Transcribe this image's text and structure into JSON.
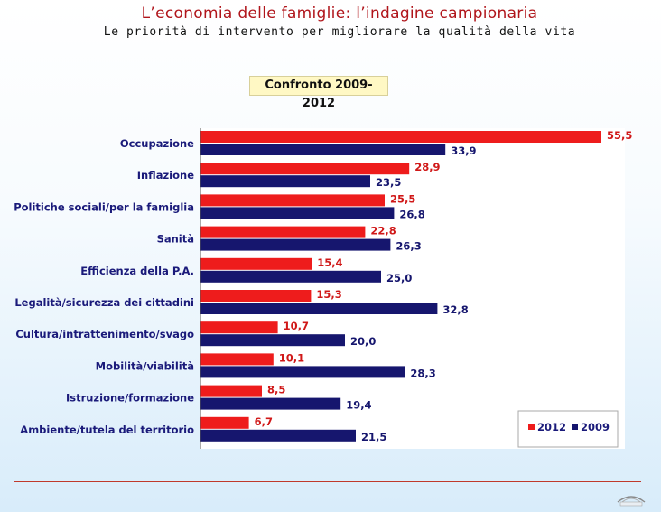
{
  "page": {
    "title": "L’economia delle famiglie: l’indagine campionaria",
    "subtitle": "Le priorità di intervento per migliorare la qualità della vita"
  },
  "chart_data": {
    "type": "bar",
    "orientation": "horizontal",
    "title": "Confronto 2009-2012",
    "categories": [
      "Occupazione",
      "Inflazione",
      "Politiche sociali/per la famiglia",
      "Sanità",
      "Efficienza della P.A.",
      "Legalità/sicurezza dei cittadini",
      "Cultura/intrattenimento/svago",
      "Mobilità/viabilità",
      "Istruzione/formazione",
      "Ambiente/tutela del territorio"
    ],
    "series": [
      {
        "name": "2012",
        "color": "#ee1c1c",
        "label_color": "#d01818",
        "values": [
          55.5,
          28.9,
          25.5,
          22.8,
          15.4,
          15.3,
          10.7,
          10.1,
          8.5,
          6.7
        ]
      },
      {
        "name": "2009",
        "color": "#16166e",
        "label_color": "#16166e",
        "values": [
          33.9,
          23.5,
          26.8,
          26.3,
          25.0,
          32.8,
          20.0,
          28.3,
          19.4,
          21.5
        ]
      }
    ],
    "legend_position": "bottom-right",
    "xlim": [
      0,
      56
    ],
    "grid": false,
    "decimal_separator": ","
  }
}
